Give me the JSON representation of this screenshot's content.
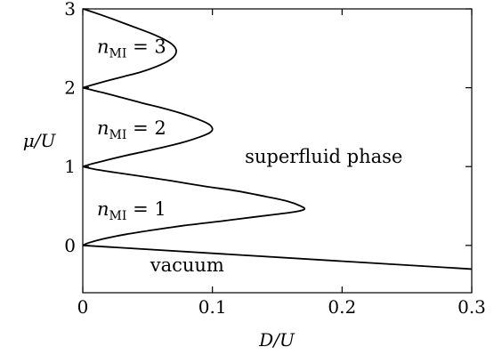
{
  "chart_data": {
    "type": "line",
    "title": "",
    "xlabel": "D/U",
    "ylabel": "μ/U",
    "xlim": [
      0,
      0.3
    ],
    "ylim": [
      -0.6,
      3
    ],
    "x_ticks": [
      0,
      0.1,
      0.2,
      0.3
    ],
    "x_tick_labels": [
      "0",
      "0.1",
      "0.2",
      "0.3"
    ],
    "y_ticks": [
      0,
      1,
      2,
      3
    ],
    "y_tick_labels": [
      "0",
      "1",
      "2",
      "3"
    ],
    "grid": false,
    "series": [
      {
        "name": "",
        "x": [
          0,
          0.004,
          0.015,
          0.033,
          0.056,
          0.082,
          0.108,
          0.132,
          0.152,
          0.165,
          0.171,
          0.168,
          0.158,
          0.141,
          0.119,
          0.094,
          0.068,
          0.044,
          0.023,
          0.008,
          0
        ],
        "y": [
          0,
          0.03,
          0.08,
          0.14,
          0.2,
          0.26,
          0.31,
          0.36,
          0.4,
          0.43,
          0.46,
          0.5,
          0.56,
          0.62,
          0.69,
          0.75,
          0.82,
          0.88,
          0.93,
          0.97,
          1.0
        ]
      },
      {
        "name": "",
        "x": [
          0,
          0.006,
          0.018,
          0.033,
          0.05,
          0.066,
          0.08,
          0.091,
          0.098,
          0.1,
          0.097,
          0.089,
          0.077,
          0.062,
          0.045,
          0.029,
          0.015,
          0.005,
          0
        ],
        "y": [
          1.0,
          1.03,
          1.08,
          1.14,
          1.2,
          1.26,
          1.32,
          1.38,
          1.43,
          1.48,
          1.54,
          1.6,
          1.67,
          1.74,
          1.81,
          1.88,
          1.94,
          1.98,
          2.0
        ]
      },
      {
        "name": "",
        "x": [
          0,
          0.006,
          0.017,
          0.031,
          0.045,
          0.057,
          0.066,
          0.071,
          0.072,
          0.069,
          0.062,
          0.051,
          0.038,
          0.025,
          0.013,
          0.004,
          0
        ],
        "y": [
          2.0,
          2.03,
          2.08,
          2.14,
          2.2,
          2.27,
          2.34,
          2.41,
          2.48,
          2.55,
          2.62,
          2.7,
          2.78,
          2.86,
          2.93,
          2.98,
          3.0
        ]
      },
      {
        "name": "",
        "x": [
          0,
          0.3
        ],
        "y": [
          0,
          -0.3
        ]
      }
    ],
    "annotations": [
      {
        "id": "superfluid",
        "text": "superfluid phase",
        "x": 0.125,
        "y": 1.05
      },
      {
        "id": "vacuum",
        "text": "vacuum",
        "x": 0.052,
        "y": -0.33
      },
      {
        "id": "n1",
        "var": "n",
        "sub": "MI",
        "rest": " = 1",
        "x": 0.011,
        "y": 0.38
      },
      {
        "id": "n2",
        "var": "n",
        "sub": "MI",
        "rest": " = 2",
        "x": 0.011,
        "y": 1.41
      },
      {
        "id": "n3",
        "var": "n",
        "sub": "MI",
        "rest": " = 3",
        "x": 0.011,
        "y": 2.44
      }
    ]
  }
}
